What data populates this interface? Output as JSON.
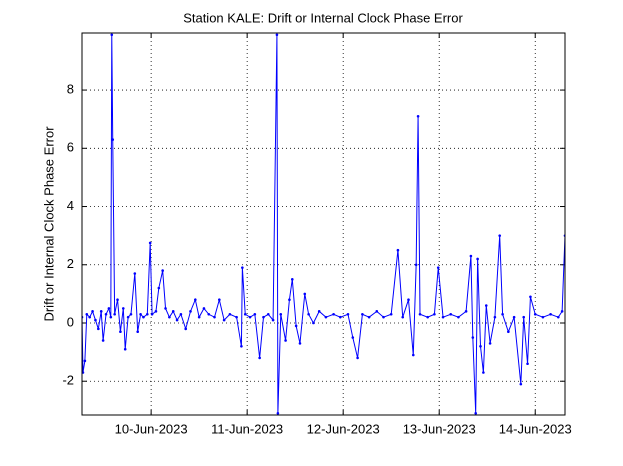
{
  "chart_data": {
    "type": "line",
    "title": "Station KALE: Drift or Internal Clock Phase Error",
    "y_label": "Drift or Internal Clock Phase Error",
    "x": [
      9.28,
      9.29,
      9.31,
      9.33,
      9.36,
      9.39,
      9.42,
      9.45,
      9.48,
      9.5,
      9.53,
      9.56,
      9.58,
      9.59,
      9.6,
      9.62,
      9.65,
      9.68,
      9.71,
      9.73,
      9.76,
      9.79,
      9.83,
      9.86,
      9.89,
      9.92,
      9.96,
      9.99,
      10.01,
      10.05,
      10.08,
      10.12,
      10.15,
      10.19,
      10.23,
      10.27,
      10.31,
      10.36,
      10.41,
      10.46,
      10.5,
      10.55,
      10.6,
      10.66,
      10.71,
      10.76,
      10.82,
      10.89,
      10.94,
      10.95,
      10.98,
      11.03,
      11.08,
      11.13,
      11.17,
      11.22,
      11.27,
      11.31,
      11.32,
      11.35,
      11.4,
      11.44,
      11.47,
      11.51,
      11.55,
      11.6,
      11.64,
      11.69,
      11.75,
      11.82,
      11.9,
      11.97,
      12.05,
      12.1,
      12.15,
      12.2,
      12.27,
      12.35,
      12.42,
      12.5,
      12.57,
      12.62,
      12.68,
      12.73,
      12.76,
      12.78,
      12.8,
      12.88,
      12.95,
      12.99,
      13.04,
      13.12,
      13.2,
      13.28,
      13.33,
      13.35,
      13.38,
      13.4,
      13.43,
      13.46,
      13.49,
      13.53,
      13.58,
      13.63,
      13.66,
      13.72,
      13.78,
      13.85,
      13.88,
      13.92,
      13.95,
      14.0,
      14.08,
      14.16,
      14.24,
      14.28,
      14.31
    ],
    "series": [
      {
        "name": "Drift or Internal Clock Phase Error",
        "color": "#0000ff",
        "values": [
          0.2,
          -1.7,
          -1.3,
          0.3,
          0.2,
          0.4,
          0.1,
          -0.2,
          0.4,
          -0.6,
          0.3,
          0.5,
          0.2,
          9.9,
          6.3,
          0.3,
          0.8,
          -0.3,
          0.5,
          -0.9,
          0.2,
          0.3,
          1.7,
          -0.3,
          0.3,
          0.2,
          0.3,
          2.75,
          0.3,
          0.4,
          1.2,
          1.8,
          0.5,
          0.2,
          0.4,
          0.1,
          0.3,
          -0.2,
          0.4,
          0.8,
          0.2,
          0.5,
          0.3,
          0.2,
          0.8,
          0.1,
          0.3,
          0.2,
          -0.8,
          1.9,
          0.3,
          0.2,
          0.3,
          -1.2,
          0.2,
          0.3,
          0.1,
          9.9,
          -3.1,
          0.3,
          -0.6,
          0.8,
          1.5,
          -0.1,
          -0.7,
          1.0,
          0.3,
          0.0,
          0.4,
          0.2,
          0.3,
          0.2,
          0.3,
          -0.5,
          -1.2,
          0.3,
          0.2,
          0.4,
          0.2,
          0.3,
          2.5,
          0.2,
          0.8,
          -1.1,
          2.0,
          7.1,
          0.3,
          0.2,
          0.3,
          1.9,
          0.2,
          0.3,
          0.2,
          0.4,
          2.3,
          -0.5,
          -3.1,
          2.2,
          -0.8,
          -1.7,
          0.6,
          -0.7,
          0.2,
          3.0,
          0.3,
          -0.3,
          0.2,
          -2.1,
          0.2,
          -1.4,
          0.9,
          0.3,
          0.2,
          0.3,
          0.2,
          0.4,
          3.0
        ]
      }
    ],
    "xlim": [
      9.28,
      14.31
    ],
    "xticks": [
      {
        "value": 10,
        "label": "10-Jun-2023"
      },
      {
        "value": 11,
        "label": "11-Jun-2023"
      },
      {
        "value": 12,
        "label": "12-Jun-2023"
      },
      {
        "value": 13,
        "label": "13-Jun-2023"
      },
      {
        "value": 14,
        "label": "14-Jun-2023"
      }
    ],
    "ylim": [
      -3.16,
      9.96
    ],
    "yticks": [
      -2,
      0,
      2,
      4,
      6,
      8
    ],
    "grid": true
  }
}
